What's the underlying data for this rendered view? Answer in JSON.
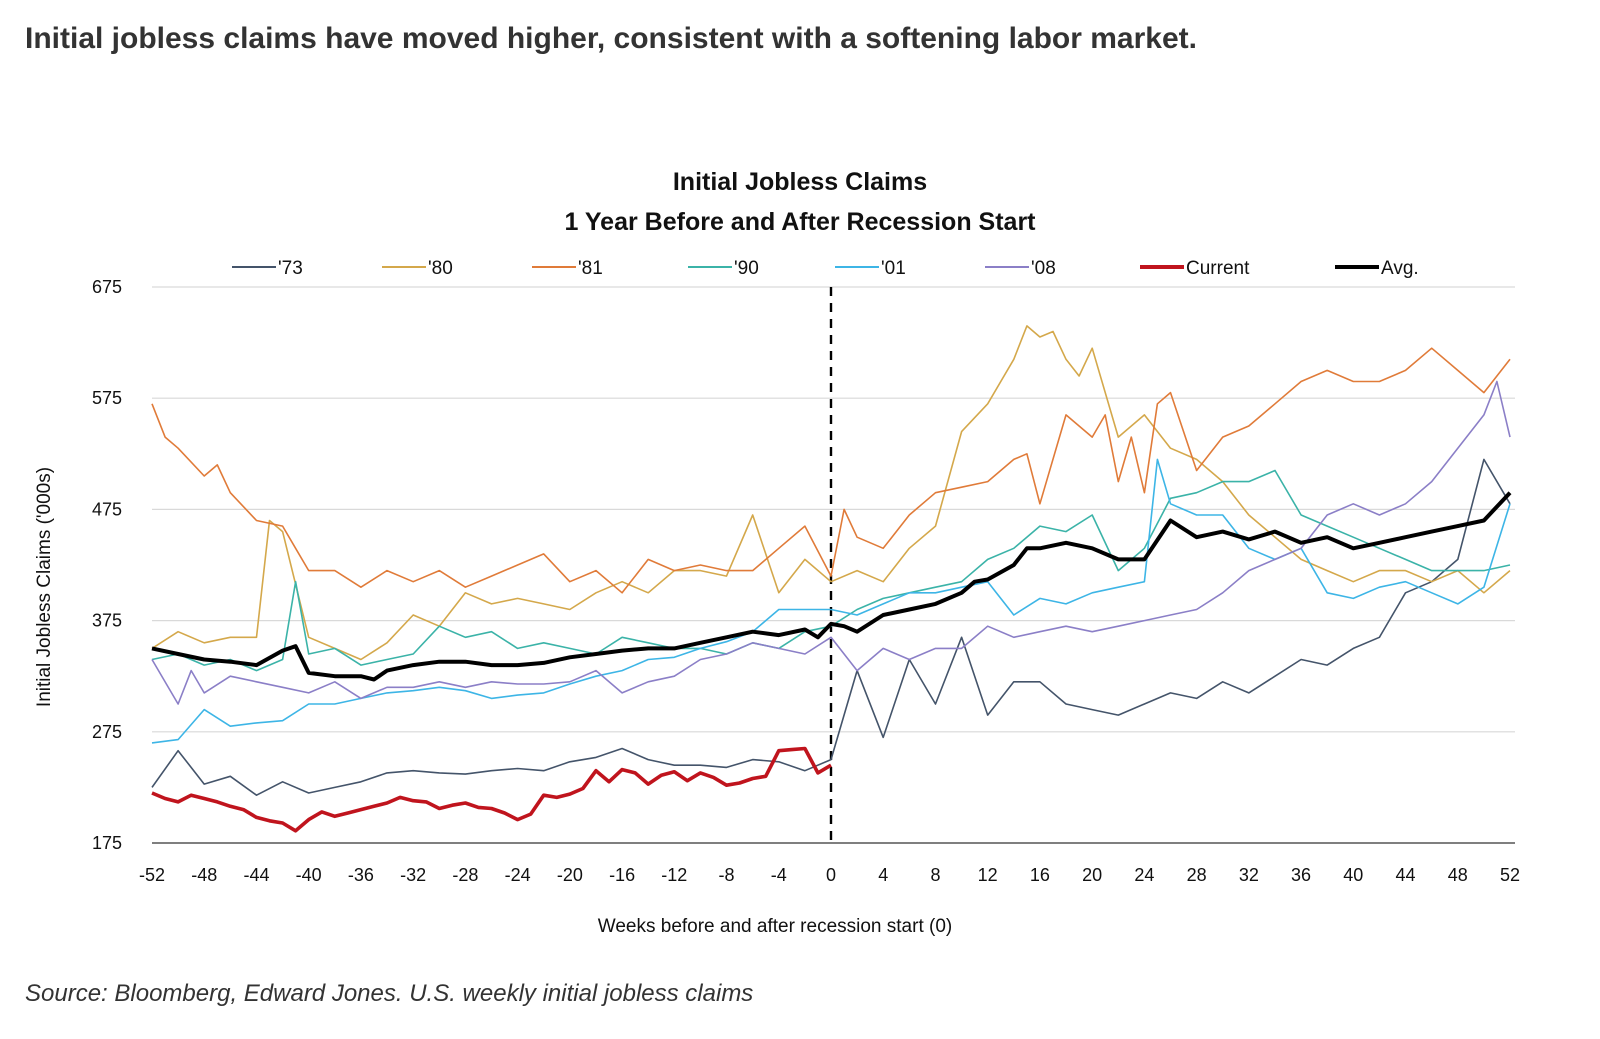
{
  "page": {
    "headline": "Initial jobless claims have moved higher, consistent with a softening labor market.",
    "source": "Source: Bloomberg, Edward Jones. U.S. weekly initial jobless claims"
  },
  "chart_data": {
    "type": "line",
    "title": "Initial Jobless Claims",
    "subtitle": "1 Year Before and After Recession Start",
    "xlabel": "Weeks before and after recession start (0)",
    "ylabel": "Initial Jobless Claims ('000s)",
    "ylim": [
      175,
      675
    ],
    "xlim": [
      -52,
      52
    ],
    "yticks": [
      175,
      275,
      375,
      475,
      575,
      675
    ],
    "xticks": [
      -52,
      -48,
      -44,
      -40,
      -36,
      -32,
      -28,
      -24,
      -20,
      -16,
      -12,
      -8,
      -4,
      0,
      4,
      8,
      12,
      16,
      20,
      24,
      28,
      32,
      36,
      40,
      44,
      48,
      52
    ],
    "grid": true,
    "legend_position": "top",
    "vline_x": 0,
    "series": [
      {
        "name": "'73",
        "color": "#44546a",
        "width": 1.6,
        "x": [
          -52,
          -50,
          -48,
          -46,
          -44,
          -42,
          -40,
          -38,
          -36,
          -34,
          -32,
          -30,
          -28,
          -26,
          -24,
          -22,
          -20,
          -18,
          -16,
          -14,
          -12,
          -10,
          -8,
          -6,
          -4,
          -2,
          0,
          2,
          4,
          6,
          8,
          10,
          12,
          14,
          16,
          18,
          20,
          22,
          24,
          26,
          28,
          30,
          32,
          34,
          36,
          38,
          40,
          42,
          44,
          46,
          48,
          50,
          52
        ],
        "y": [
          225,
          258,
          228,
          235,
          218,
          230,
          220,
          225,
          230,
          238,
          240,
          238,
          237,
          240,
          242,
          240,
          248,
          252,
          260,
          250,
          245,
          245,
          243,
          250,
          248,
          240,
          250,
          330,
          270,
          340,
          300,
          360,
          290,
          320,
          320,
          300,
          295,
          290,
          300,
          310,
          305,
          320,
          310,
          325,
          340,
          335,
          350,
          360,
          400,
          410,
          430,
          520,
          480
        ]
      },
      {
        "name": "'80",
        "color": "#d4a84b",
        "width": 1.6,
        "x": [
          -52,
          -50,
          -48,
          -46,
          -44,
          -43,
          -42,
          -40,
          -38,
          -36,
          -34,
          -32,
          -30,
          -28,
          -26,
          -24,
          -22,
          -20,
          -18,
          -16,
          -14,
          -12,
          -10,
          -8,
          -6,
          -4,
          -2,
          0,
          2,
          4,
          6,
          8,
          10,
          12,
          14,
          15,
          16,
          17,
          18,
          19,
          20,
          22,
          24,
          26,
          28,
          30,
          32,
          34,
          36,
          38,
          40,
          42,
          44,
          46,
          48,
          50,
          52
        ],
        "y": [
          350,
          365,
          355,
          360,
          360,
          465,
          455,
          360,
          350,
          340,
          355,
          380,
          370,
          400,
          390,
          395,
          390,
          385,
          400,
          410,
          400,
          420,
          420,
          415,
          470,
          400,
          430,
          410,
          420,
          410,
          440,
          460,
          545,
          570,
          610,
          640,
          630,
          635,
          610,
          595,
          620,
          540,
          560,
          530,
          520,
          500,
          470,
          450,
          430,
          420,
          410,
          420,
          420,
          410,
          420,
          400,
          420
        ]
      },
      {
        "name": "'81",
        "color": "#e07b39",
        "width": 1.6,
        "x": [
          -52,
          -51,
          -50,
          -48,
          -47,
          -46,
          -44,
          -42,
          -41,
          -40,
          -38,
          -36,
          -34,
          -32,
          -30,
          -28,
          -26,
          -24,
          -22,
          -20,
          -18,
          -16,
          -14,
          -12,
          -10,
          -8,
          -6,
          -4,
          -2,
          0,
          1,
          2,
          4,
          6,
          8,
          10,
          12,
          14,
          15,
          16,
          18,
          20,
          21,
          22,
          23,
          24,
          25,
          26,
          28,
          30,
          32,
          34,
          36,
          38,
          40,
          42,
          44,
          46,
          48,
          50,
          52
        ],
        "y": [
          570,
          540,
          530,
          505,
          515,
          490,
          465,
          460,
          440,
          420,
          420,
          405,
          420,
          410,
          420,
          405,
          415,
          425,
          435,
          410,
          420,
          400,
          430,
          420,
          425,
          420,
          420,
          440,
          460,
          415,
          475,
          450,
          440,
          470,
          490,
          495,
          500,
          520,
          525,
          480,
          560,
          540,
          560,
          500,
          540,
          490,
          570,
          580,
          510,
          540,
          550,
          570,
          590,
          600,
          590,
          590,
          600,
          620,
          600,
          580,
          610
        ]
      },
      {
        "name": "'90",
        "color": "#3bb3a8",
        "width": 1.6,
        "x": [
          -52,
          -50,
          -48,
          -46,
          -44,
          -42,
          -41,
          -40,
          -38,
          -36,
          -34,
          -32,
          -30,
          -28,
          -26,
          -24,
          -22,
          -20,
          -18,
          -16,
          -14,
          -12,
          -10,
          -8,
          -6,
          -4,
          -2,
          0,
          2,
          4,
          6,
          8,
          10,
          12,
          14,
          16,
          18,
          20,
          22,
          24,
          26,
          28,
          30,
          32,
          34,
          36,
          38,
          40,
          42,
          44,
          46,
          48,
          50,
          52
        ],
        "y": [
          340,
          345,
          335,
          340,
          330,
          340,
          410,
          345,
          350,
          335,
          340,
          345,
          370,
          360,
          365,
          350,
          355,
          350,
          345,
          360,
          355,
          350,
          350,
          345,
          355,
          350,
          365,
          370,
          385,
          395,
          400,
          405,
          410,
          430,
          440,
          460,
          455,
          470,
          420,
          440,
          485,
          490,
          500,
          500,
          510,
          470,
          460,
          450,
          440,
          430,
          420,
          420,
          420,
          425
        ]
      },
      {
        "name": "'01",
        "color": "#3db5e6",
        "width": 1.6,
        "x": [
          -52,
          -50,
          -48,
          -46,
          -44,
          -42,
          -40,
          -38,
          -36,
          -34,
          -32,
          -30,
          -28,
          -26,
          -24,
          -22,
          -20,
          -18,
          -16,
          -14,
          -12,
          -10,
          -8,
          -6,
          -4,
          -2,
          0,
          2,
          4,
          6,
          8,
          10,
          12,
          14,
          16,
          18,
          20,
          22,
          24,
          25,
          26,
          28,
          30,
          32,
          34,
          36,
          38,
          40,
          42,
          44,
          46,
          48,
          50,
          52
        ],
        "y": [
          265,
          268,
          295,
          280,
          283,
          285,
          300,
          300,
          305,
          310,
          312,
          315,
          312,
          305,
          308,
          310,
          318,
          325,
          330,
          340,
          342,
          350,
          356,
          365,
          385,
          385,
          385,
          380,
          390,
          400,
          400,
          405,
          410,
          380,
          395,
          390,
          400,
          405,
          410,
          520,
          480,
          470,
          470,
          440,
          430,
          440,
          400,
          395,
          405,
          410,
          400,
          390,
          405,
          480
        ]
      },
      {
        "name": "'08",
        "color": "#8b7fc7",
        "width": 1.6,
        "x": [
          -52,
          -50,
          -49,
          -48,
          -46,
          -44,
          -42,
          -40,
          -38,
          -36,
          -34,
          -32,
          -30,
          -28,
          -26,
          -24,
          -22,
          -20,
          -18,
          -16,
          -14,
          -12,
          -10,
          -8,
          -6,
          -4,
          -2,
          0,
          2,
          4,
          6,
          8,
          10,
          12,
          14,
          16,
          18,
          20,
          22,
          24,
          26,
          28,
          30,
          32,
          34,
          36,
          38,
          40,
          42,
          44,
          46,
          48,
          50,
          51,
          52
        ],
        "y": [
          340,
          300,
          330,
          310,
          325,
          320,
          315,
          310,
          320,
          305,
          315,
          315,
          320,
          315,
          320,
          318,
          318,
          320,
          330,
          310,
          320,
          325,
          340,
          345,
          355,
          350,
          345,
          360,
          330,
          350,
          340,
          350,
          350,
          370,
          360,
          365,
          370,
          365,
          370,
          375,
          380,
          385,
          400,
          420,
          430,
          440,
          470,
          480,
          470,
          480,
          500,
          530,
          560,
          590,
          540
        ]
      },
      {
        "name": "Current",
        "color": "#c0141d",
        "width": 3.6,
        "x": [
          -52,
          -51,
          -50,
          -49,
          -48,
          -47,
          -46,
          -45,
          -44,
          -43,
          -42,
          -41,
          -40,
          -39,
          -38,
          -37,
          -36,
          -35,
          -34,
          -33,
          -32,
          -31,
          -30,
          -29,
          -28,
          -27,
          -26,
          -25,
          -24,
          -23,
          -22,
          -21,
          -20,
          -19,
          -18,
          -17,
          -16,
          -15,
          -14,
          -13,
          -12,
          -11,
          -10,
          -9,
          -8,
          -7,
          -6,
          -5,
          -4,
          -3,
          -2,
          -1,
          0
        ],
        "y": [
          220,
          215,
          212,
          218,
          215,
          212,
          208,
          205,
          198,
          195,
          193,
          186,
          196,
          203,
          199,
          202,
          205,
          208,
          211,
          216,
          213,
          212,
          206,
          209,
          211,
          207,
          206,
          202,
          196,
          201,
          218,
          216,
          219,
          224,
          240,
          230,
          241,
          238,
          228,
          236,
          239,
          231,
          238,
          234,
          227,
          229,
          233,
          235,
          258,
          259,
          260,
          238,
          245
        ]
      },
      {
        "name": "Avg.",
        "color": "#000000",
        "width": 4,
        "x": [
          -52,
          -50,
          -48,
          -46,
          -44,
          -42,
          -41,
          -40,
          -38,
          -36,
          -35,
          -34,
          -32,
          -30,
          -28,
          -26,
          -24,
          -22,
          -20,
          -18,
          -16,
          -14,
          -12,
          -10,
          -8,
          -6,
          -4,
          -2,
          -1,
          0,
          1,
          2,
          4,
          6,
          8,
          10,
          11,
          12,
          14,
          15,
          16,
          18,
          20,
          22,
          24,
          26,
          28,
          30,
          32,
          34,
          36,
          38,
          40,
          42,
          44,
          46,
          48,
          50,
          52
        ],
        "y": [
          350,
          345,
          340,
          338,
          335,
          348,
          352,
          328,
          325,
          325,
          322,
          330,
          335,
          338,
          338,
          335,
          335,
          337,
          342,
          345,
          348,
          350,
          350,
          355,
          360,
          365,
          362,
          367,
          360,
          372,
          370,
          365,
          380,
          385,
          390,
          400,
          410,
          412,
          425,
          440,
          440,
          445,
          440,
          430,
          430,
          465,
          450,
          455,
          448,
          455,
          445,
          450,
          440,
          445,
          450,
          455,
          460,
          465,
          490
        ]
      }
    ]
  }
}
